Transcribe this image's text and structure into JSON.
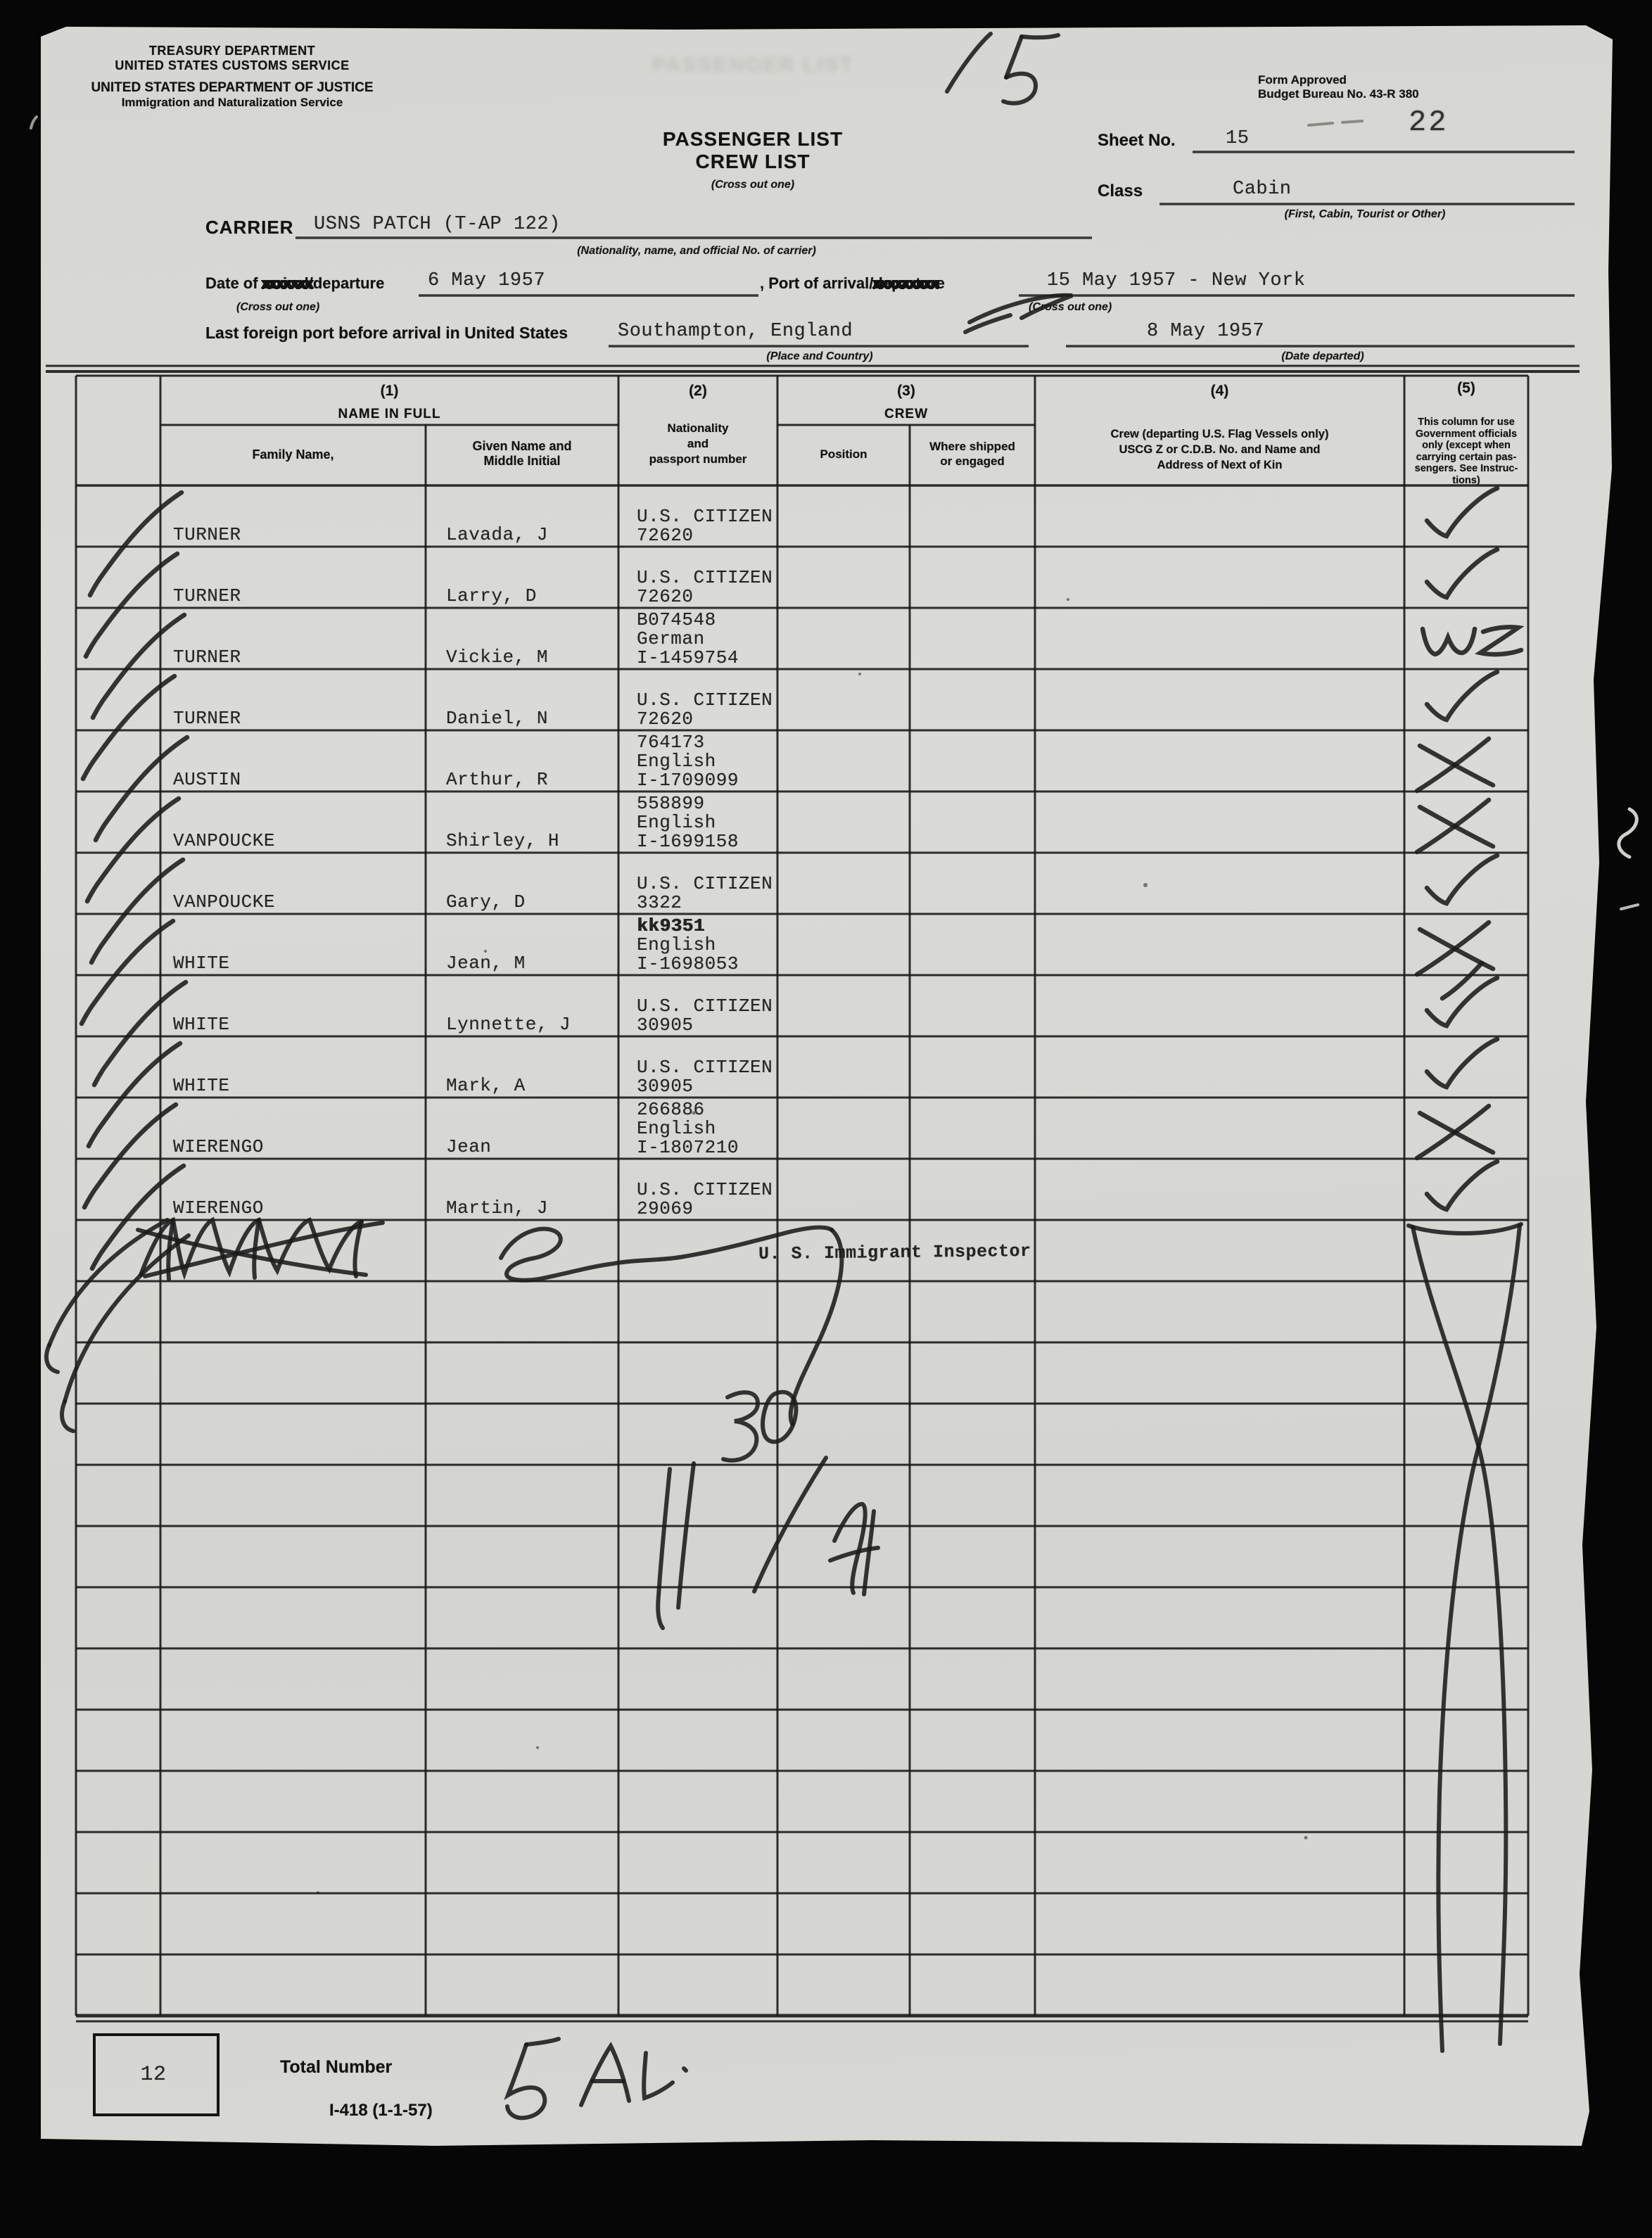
{
  "scan": {
    "stamp_number": "22",
    "sheet_big_handwritten": "15",
    "page_in_box": "12"
  },
  "agency": {
    "line1": "TREASURY DEPARTMENT",
    "line2": "UNITED STATES CUSTOMS SERVICE",
    "line3": "UNITED STATES DEPARTMENT OF JUSTICE",
    "line4": "Immigration and Naturalization Service"
  },
  "title": {
    "line1": "PASSENGER LIST",
    "line2": "CREW LIST",
    "note": "(Cross out one)"
  },
  "form_approval": {
    "line1": "Form Approved",
    "line2": "Budget Bureau No. 43-R 380"
  },
  "sheet": {
    "label": "Sheet No.",
    "value": "15"
  },
  "class_line": {
    "label": "Class",
    "value": "Cabin",
    "note": "(First, Cabin, Tourist or Other)"
  },
  "carrier": {
    "label": "CARRIER",
    "value": "USNS PATCH (T-AP 122)",
    "note": "(Nationality, name, and official No. of carrier)"
  },
  "date_line": {
    "prefix": "Date of ",
    "crossed_word": "arrival",
    "strike": "xxxxxxx",
    "suffix": "/departure",
    "note": "(Cross out one)",
    "value": "6 May 1957",
    "port_label": ", Port of arrival/",
    "port_crossed_word": "departure",
    "port_strike": "xxxxxxxxx",
    "port_note": "(Cross out one)",
    "port_value": "15 May 1957 - New York"
  },
  "foreign_port": {
    "label": "Last foreign port before arrival in United States",
    "value": "Southampton, England",
    "note": "(Place and Country)",
    "date_value": "8 May 1957",
    "date_note": "(Date departed)"
  },
  "table_header": {
    "col1_num": "(1)",
    "col1_title": "NAME IN FULL",
    "family": "Family Name,",
    "given": "Given Name and\nMiddle Initial",
    "col2_num": "(2)",
    "col2_title": "Nationality\nand\npassport number",
    "col3_num": "(3)",
    "col3_title": "CREW",
    "position": "Position",
    "where": "Where shipped\nor engaged",
    "col4_num": "(4)",
    "col4_title": "Crew (departing U.S. Flag Vessels only)\nUSCG  Z or C.D.B. No. and Name and\nAddress of Next of Kin",
    "col5_num": "(5)",
    "col5_title": "This column for use\nGovernment officials\nonly (except when\ncarrying certain pas-\nsengers. See Instruc-\ntions)"
  },
  "passengers": [
    {
      "family": "TURNER",
      "given": "Lavada, J",
      "nationality_lines": [
        "U.S. CITIZEN",
        "72620"
      ],
      "official_mark": "check"
    },
    {
      "family": "TURNER",
      "given": "Larry, D",
      "nationality_lines": [
        "U.S. CITIZEN",
        "72620"
      ],
      "official_mark": "check"
    },
    {
      "family": "TURNER",
      "given": "Vickie, M",
      "nationality_lines": [
        "B074548",
        "German",
        "I-1459754"
      ],
      "official_mark": "wz"
    },
    {
      "family": "TURNER",
      "given": "Daniel, N",
      "nationality_lines": [
        "U.S. CITIZEN",
        "72620"
      ],
      "official_mark": "check"
    },
    {
      "family": "AUSTIN",
      "given": "Arthur, R",
      "nationality_lines": [
        "764173",
        "English",
        "I-1709099"
      ],
      "official_mark": "x"
    },
    {
      "family": "VANPOUCKE",
      "given": "Shirley, H",
      "nationality_lines": [
        "558899",
        "English",
        "I-1699158"
      ],
      "official_mark": "x"
    },
    {
      "family": "VANPOUCKE",
      "given": "Gary, D",
      "nationality_lines": [
        "U.S. CITIZEN",
        "3322"
      ],
      "official_mark": "check"
    },
    {
      "family": "WHITE",
      "given": "Jean, M",
      "nationality_lines": [
        "kk9351",
        "English",
        "I-1698053"
      ],
      "official_mark": "x"
    },
    {
      "family": "WHITE",
      "given": "Lynnette, J",
      "nationality_lines": [
        "U.S. CITIZEN",
        "30905"
      ],
      "official_mark": "check"
    },
    {
      "family": "WHITE",
      "given": "Mark, A",
      "nationality_lines": [
        "U.S. CITIZEN",
        "30905"
      ],
      "official_mark": "check"
    },
    {
      "family": "WIERENGO",
      "given": "Jean",
      "nationality_lines": [
        "266886",
        "English",
        "I-1807210"
      ],
      "official_mark": "x"
    },
    {
      "family": "WIERENGO",
      "given": "Martin, J",
      "nationality_lines": [
        "U.S. CITIZEN",
        "29069"
      ],
      "official_mark": "check"
    }
  ],
  "inspector_title": "U. S. Immigrant Inspector",
  "footer": {
    "page_box_number": "12",
    "total_label": "Total Number",
    "total_handwritten": "5 AL.",
    "form_number": "I-418  (1-1-57)"
  }
}
